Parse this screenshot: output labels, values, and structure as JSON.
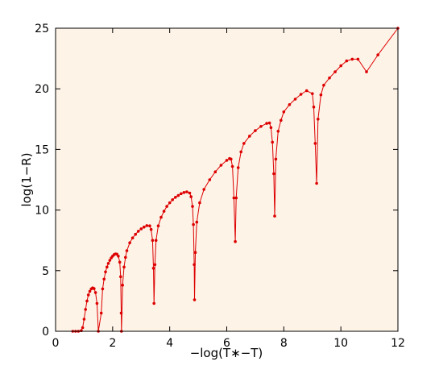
{
  "chart_data": {
    "type": "line",
    "title": "",
    "xlabel": "−log(T∗−T)",
    "ylabel": "log(1−R)",
    "xlim": [
      0,
      12
    ],
    "ylim": [
      0,
      25
    ],
    "xticks": [
      "0",
      "2",
      "4",
      "6",
      "8",
      "10",
      "12"
    ],
    "yticks": [
      "0",
      "5",
      "10",
      "15",
      "20",
      "25"
    ],
    "grid": false,
    "legend": "none",
    "colors": {
      "background": "#fdf3e7",
      "series": "#dd0000"
    },
    "series": [
      {
        "name": "",
        "points": [
          [
            0.6,
            0
          ],
          [
            0.7,
            0
          ],
          [
            0.8,
            0
          ],
          [
            0.9,
            0.05
          ],
          [
            0.95,
            0.3
          ],
          [
            1.0,
            1.0
          ],
          [
            1.05,
            1.8
          ],
          [
            1.1,
            2.5
          ],
          [
            1.15,
            3.0
          ],
          [
            1.2,
            3.3
          ],
          [
            1.25,
            3.5
          ],
          [
            1.3,
            3.58
          ],
          [
            1.35,
            3.52
          ],
          [
            1.4,
            3.2
          ],
          [
            1.45,
            2.3
          ],
          [
            1.5,
            0
          ],
          [
            1.6,
            1.5
          ],
          [
            1.65,
            3.5
          ],
          [
            1.7,
            4.3
          ],
          [
            1.75,
            4.9
          ],
          [
            1.8,
            5.3
          ],
          [
            1.85,
            5.6
          ],
          [
            1.9,
            5.85
          ],
          [
            1.95,
            6.05
          ],
          [
            2.0,
            6.2
          ],
          [
            2.05,
            6.32
          ],
          [
            2.1,
            6.38
          ],
          [
            2.15,
            6.36
          ],
          [
            2.2,
            6.2
          ],
          [
            2.25,
            5.7
          ],
          [
            2.28,
            4.5
          ],
          [
            2.3,
            1.5
          ],
          [
            2.31,
            0
          ],
          [
            2.35,
            3.8
          ],
          [
            2.4,
            5.3
          ],
          [
            2.45,
            6.1
          ],
          [
            2.5,
            6.65
          ],
          [
            2.6,
            7.3
          ],
          [
            2.7,
            7.7
          ],
          [
            2.8,
            8.0
          ],
          [
            2.9,
            8.25
          ],
          [
            3.0,
            8.45
          ],
          [
            3.1,
            8.6
          ],
          [
            3.2,
            8.72
          ],
          [
            3.3,
            8.7
          ],
          [
            3.35,
            8.4
          ],
          [
            3.4,
            7.5
          ],
          [
            3.43,
            5.2
          ],
          [
            3.45,
            2.3
          ],
          [
            3.48,
            5.5
          ],
          [
            3.52,
            7.5
          ],
          [
            3.6,
            8.7
          ],
          [
            3.7,
            9.4
          ],
          [
            3.8,
            9.9
          ],
          [
            3.9,
            10.3
          ],
          [
            4.0,
            10.6
          ],
          [
            4.1,
            10.85
          ],
          [
            4.2,
            11.05
          ],
          [
            4.3,
            11.2
          ],
          [
            4.4,
            11.35
          ],
          [
            4.5,
            11.45
          ],
          [
            4.6,
            11.5
          ],
          [
            4.7,
            11.4
          ],
          [
            4.75,
            11.1
          ],
          [
            4.8,
            10.3
          ],
          [
            4.83,
            8.8
          ],
          [
            4.86,
            5.5
          ],
          [
            4.87,
            2.6
          ],
          [
            4.9,
            6.5
          ],
          [
            4.95,
            9.0
          ],
          [
            5.05,
            10.6
          ],
          [
            5.2,
            11.7
          ],
          [
            5.4,
            12.5
          ],
          [
            5.6,
            13.15
          ],
          [
            5.8,
            13.7
          ],
          [
            6.0,
            14.1
          ],
          [
            6.1,
            14.25
          ],
          [
            6.15,
            14.2
          ],
          [
            6.2,
            13.6
          ],
          [
            6.25,
            11.0
          ],
          [
            6.3,
            7.4
          ],
          [
            6.33,
            11.0
          ],
          [
            6.4,
            13.5
          ],
          [
            6.5,
            14.8
          ],
          [
            6.6,
            15.5
          ],
          [
            6.8,
            16.1
          ],
          [
            7.0,
            16.55
          ],
          [
            7.2,
            16.9
          ],
          [
            7.4,
            17.15
          ],
          [
            7.5,
            17.18
          ],
          [
            7.55,
            16.8
          ],
          [
            7.6,
            15.6
          ],
          [
            7.65,
            13.0
          ],
          [
            7.68,
            9.5
          ],
          [
            7.72,
            14.2
          ],
          [
            7.8,
            16.5
          ],
          [
            7.9,
            17.4
          ],
          [
            8.0,
            18.1
          ],
          [
            8.2,
            18.7
          ],
          [
            8.4,
            19.15
          ],
          [
            8.6,
            19.55
          ],
          [
            8.8,
            19.85
          ],
          [
            9.0,
            19.6
          ],
          [
            9.05,
            18.5
          ],
          [
            9.1,
            15.5
          ],
          [
            9.15,
            12.2
          ],
          [
            9.2,
            17.5
          ],
          [
            9.3,
            19.5
          ],
          [
            9.4,
            20.3
          ],
          [
            9.6,
            20.9
          ],
          [
            9.8,
            21.4
          ],
          [
            10.0,
            21.9
          ],
          [
            10.2,
            22.3
          ],
          [
            10.4,
            22.45
          ],
          [
            10.6,
            22.45
          ],
          [
            10.9,
            21.4
          ],
          [
            11.3,
            22.8
          ],
          [
            12.0,
            25.0
          ]
        ]
      }
    ]
  }
}
